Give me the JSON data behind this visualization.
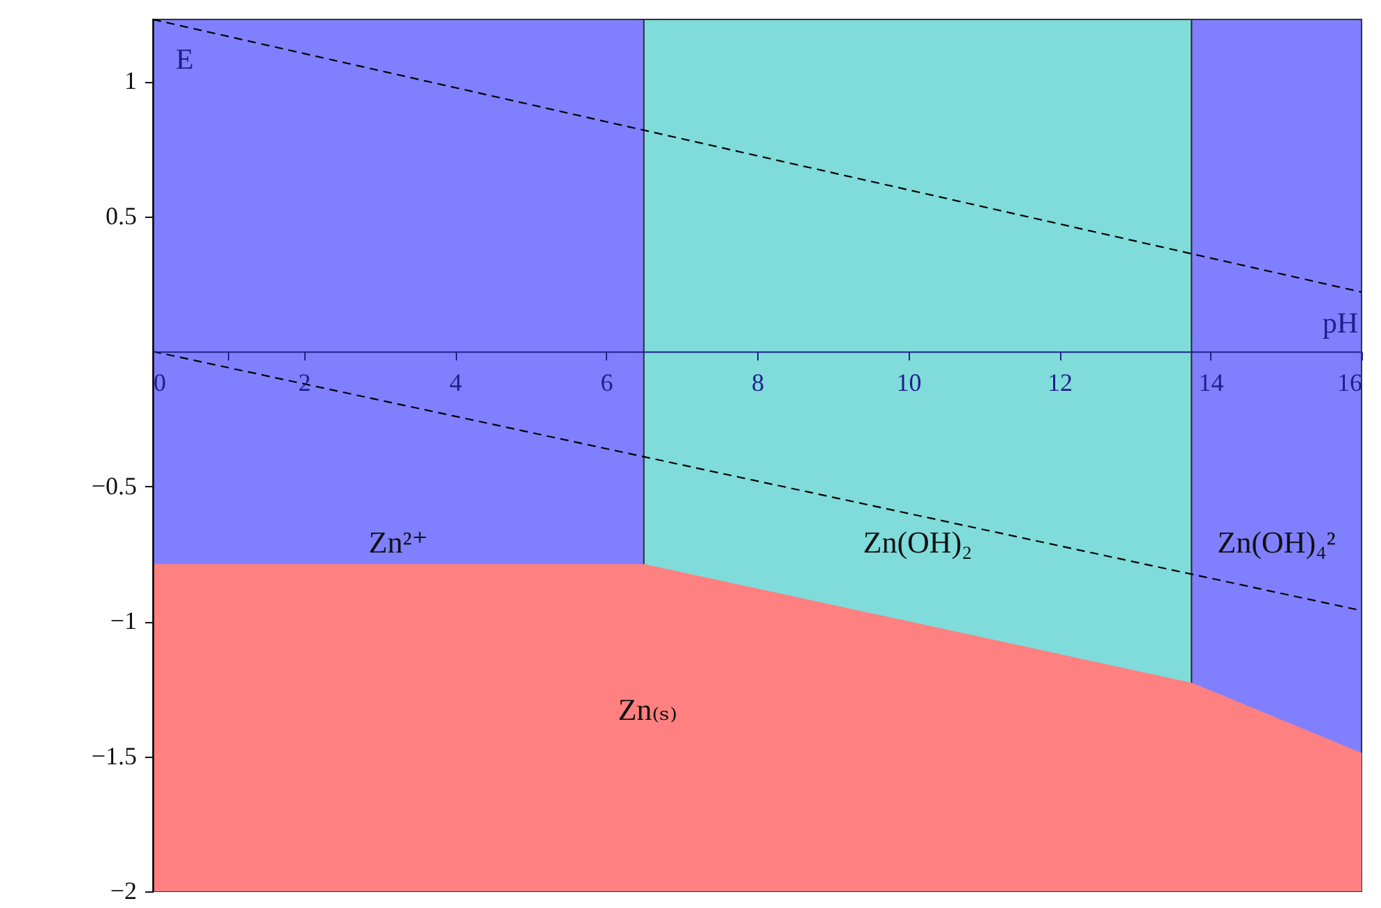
{
  "chart_data": {
    "type": "line",
    "xlabel": "pH",
    "ylabel": "E",
    "xlim": [
      0,
      16
    ],
    "ylim": [
      -2,
      1.23
    ],
    "xticks": [
      0,
      {
        "value": 1,
        "label": null
      },
      2,
      4,
      6,
      8,
      10,
      12,
      14,
      16
    ],
    "yticks": [
      -2,
      -1.5,
      -1,
      -0.5,
      0.5,
      1
    ],
    "bands": [
      {
        "axis": "x",
        "from": 0,
        "to": 6.5,
        "color": "#8080ff",
        "label": "Zn²⁺"
      },
      {
        "axis": "x",
        "from": 6.5,
        "to": 13.75,
        "color": "#80dbdb",
        "label": "Zn(OH)₂"
      },
      {
        "axis": "x",
        "from": 13.75,
        "to": 16,
        "color": "#8080ff",
        "label": "Zn(OH)₄²"
      }
    ],
    "series": [
      {
        "color": "#ff8080",
        "x": [
          0,
          6.5,
          13.75,
          16
        ],
        "values": [
          -0.79,
          -0.79,
          -1.23,
          -1.49
        ],
        "lower": [
          -2,
          -2,
          -2,
          -2
        ],
        "upper": [
          -0.79,
          -0.79,
          -1.23,
          -1.49
        ]
      },
      {
        "color": "#000000",
        "line_style": "dashed",
        "x": [
          0,
          16
        ],
        "values": [
          1.23,
          0.22
        ]
      },
      {
        "color": "#000000",
        "line_style": "dashed",
        "x": [
          0,
          16
        ],
        "values": [
          0,
          -0.96
        ]
      }
    ],
    "annotations": [
      {
        "text": "Zn₍ₛ₎",
        "x": 6.55,
        "y": -1.33
      }
    ]
  }
}
